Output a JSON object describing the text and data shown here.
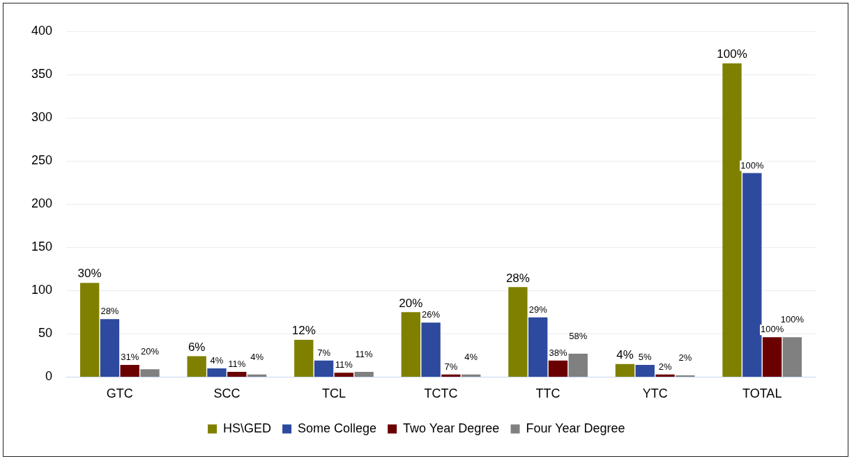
{
  "chart_data": {
    "type": "bar",
    "categories": [
      "GTC",
      "SCC",
      "TCL",
      "TCTC",
      "TTC",
      "YTC",
      "TOTAL"
    ],
    "series": [
      {
        "name": "HS\\GED",
        "color": "#808000",
        "values": [
          109,
          24,
          43,
          75,
          104,
          15,
          363
        ]
      },
      {
        "name": "Some College",
        "color": "#2e4a9e",
        "values": [
          67,
          10,
          19,
          63,
          69,
          14,
          236
        ]
      },
      {
        "name": "Two Year Degree",
        "color": "#6b0000",
        "values": [
          14,
          6,
          5,
          3,
          19,
          3,
          46
        ]
      },
      {
        "name": "Four Year Degree",
        "color": "#808080",
        "values": [
          9,
          3,
          6,
          3,
          27,
          2,
          46
        ]
      }
    ],
    "annotations": [
      "30%",
      "6%",
      "12%",
      "20%",
      "28%",
      "4%",
      "100%",
      "28%",
      "4%",
      "7%",
      "26%",
      "29%",
      "5%",
      "100%",
      "31%",
      "11%",
      "11%",
      "7%",
      "38%",
      "2%",
      "100%",
      "20%",
      "4%",
      "11%",
      "4%",
      "58%",
      "2%",
      "100%"
    ],
    "ylim": [
      0,
      400
    ],
    "yticks": [
      0,
      50,
      100,
      150,
      200,
      250,
      300,
      350,
      400
    ],
    "grid": "y",
    "legend": "bottom"
  }
}
